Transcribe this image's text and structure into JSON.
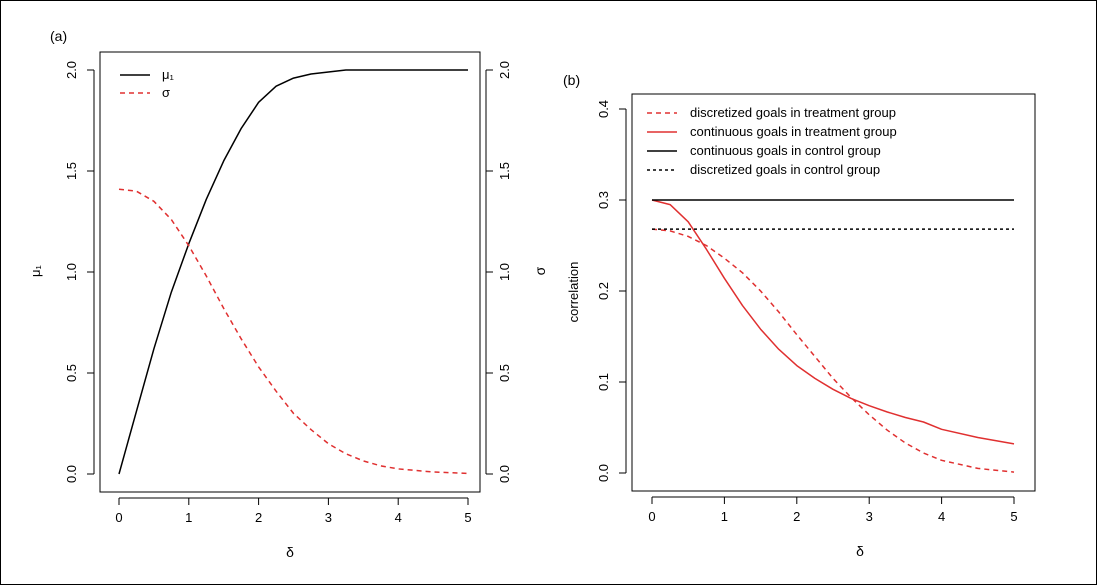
{
  "panels": {
    "a_label": "(a)",
    "b_label": "(b)"
  },
  "chart_data": [
    {
      "type": "line",
      "panel": "(a)",
      "xlabel": "δ",
      "ylabel_left": "μ₁",
      "ylabel_right": "σ",
      "xlim": [
        0,
        5
      ],
      "ylim": [
        0,
        2
      ],
      "xticks": [
        0,
        1,
        2,
        3,
        4,
        5
      ],
      "yticks": [
        "0.0",
        "0.5",
        "1.0",
        "1.5",
        "2.0"
      ],
      "grid": false,
      "legend_position": "top-left",
      "series": [
        {
          "name": "μ₁",
          "color": "#000000",
          "dash": "solid",
          "axis": "left",
          "x": [
            0,
            0.25,
            0.5,
            0.75,
            1.0,
            1.25,
            1.5,
            1.75,
            2.0,
            2.25,
            2.5,
            2.75,
            3.0,
            3.25,
            3.5,
            3.75,
            4.0,
            4.5,
            5.0
          ],
          "y": [
            0.0,
            0.31,
            0.62,
            0.9,
            1.14,
            1.36,
            1.55,
            1.71,
            1.84,
            1.92,
            1.96,
            1.98,
            1.99,
            2.0,
            2.0,
            2.0,
            2.0,
            2.0,
            2.0
          ]
        },
        {
          "name": "σ",
          "color": "#e03030",
          "dash": "dashed",
          "axis": "right",
          "x": [
            0,
            0.25,
            0.5,
            0.75,
            1.0,
            1.25,
            1.5,
            1.75,
            2.0,
            2.25,
            2.5,
            2.75,
            3.0,
            3.25,
            3.5,
            3.75,
            4.0,
            4.5,
            5.0
          ],
          "y": [
            1.41,
            1.4,
            1.35,
            1.26,
            1.13,
            0.98,
            0.82,
            0.67,
            0.53,
            0.41,
            0.3,
            0.22,
            0.15,
            0.1,
            0.065,
            0.04,
            0.025,
            0.01,
            0.003
          ]
        }
      ]
    },
    {
      "type": "line",
      "panel": "(b)",
      "xlabel": "δ",
      "ylabel": "correlation",
      "xlim": [
        0,
        5
      ],
      "ylim": [
        0,
        0.4
      ],
      "xticks": [
        0,
        1,
        2,
        3,
        4,
        5
      ],
      "yticks": [
        "0.0",
        "0.1",
        "0.2",
        "0.3",
        "0.4"
      ],
      "grid": false,
      "legend_position": "top-left",
      "series": [
        {
          "name": "discretized goals in treatment group",
          "color": "#e03030",
          "dash": "dashed",
          "x": [
            0,
            0.25,
            0.5,
            0.75,
            1.0,
            1.25,
            1.5,
            1.75,
            2.0,
            2.25,
            2.5,
            2.75,
            3.0,
            3.25,
            3.5,
            3.75,
            4.0,
            4.5,
            5.0
          ],
          "y": [
            0.268,
            0.266,
            0.26,
            0.25,
            0.236,
            0.22,
            0.2,
            0.177,
            0.152,
            0.128,
            0.104,
            0.083,
            0.064,
            0.047,
            0.033,
            0.022,
            0.014,
            0.005,
            0.001
          ]
        },
        {
          "name": "continuous goals in treatment group",
          "color": "#e03030",
          "dash": "solid",
          "x": [
            0,
            0.25,
            0.5,
            0.75,
            1.0,
            1.25,
            1.5,
            1.75,
            2.0,
            2.25,
            2.5,
            2.75,
            3.0,
            3.25,
            3.5,
            3.75,
            4.0,
            4.5,
            5.0
          ],
          "y": [
            0.3,
            0.295,
            0.276,
            0.246,
            0.214,
            0.184,
            0.158,
            0.136,
            0.118,
            0.104,
            0.092,
            0.082,
            0.074,
            0.067,
            0.061,
            0.056,
            0.048,
            0.039,
            0.032
          ]
        },
        {
          "name": "continuous goals in control group",
          "color": "#000000",
          "dash": "solid",
          "x": [
            0,
            5
          ],
          "y": [
            0.3,
            0.3
          ]
        },
        {
          "name": "discretized goals in control group",
          "color": "#000000",
          "dash": "dashed",
          "x": [
            0,
            5
          ],
          "y": [
            0.268,
            0.268
          ]
        }
      ]
    }
  ]
}
